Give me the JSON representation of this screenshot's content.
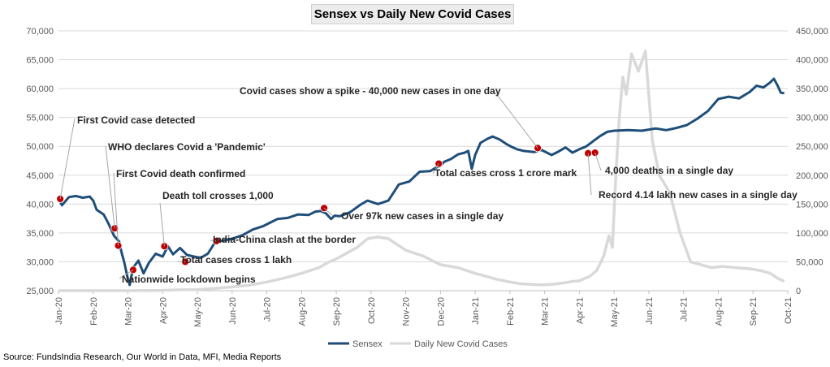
{
  "chart_data": {
    "type": "line",
    "title": "Sensex vs Daily New Covid Cases",
    "source": "Source: FundsIndia Research, Our World in Data, MFI, Media Reports",
    "x_tick_labels": [
      "Jan-20",
      "Feb-20",
      "Mar-20",
      "Apr-20",
      "May-20",
      "Jun-20",
      "Jul-20",
      "Aug-20",
      "Sep-20",
      "Oct-20",
      "Nov-20",
      "Dec-20",
      "Jan-21",
      "Feb-21",
      "Mar-21",
      "Apr-21",
      "May-21",
      "Jun-21",
      "Jul-21",
      "Aug-21",
      "Sep-21",
      "Oct-21"
    ],
    "x_range": [
      0,
      21
    ],
    "y_left": {
      "range": [
        25000,
        70000
      ],
      "ticks": [
        "25,000",
        "30,000",
        "35,000",
        "40,000",
        "45,000",
        "50,000",
        "55,000",
        "60,000",
        "65,000",
        "70,000"
      ]
    },
    "y_right": {
      "range": [
        0,
        450000
      ],
      "ticks": [
        "0",
        "50,000",
        "100,000",
        "150,000",
        "200,000",
        "250,000",
        "300,000",
        "350,000",
        "400,000",
        "450,000"
      ]
    },
    "legend": {
      "position": "bottom",
      "items": [
        "Sensex",
        "Daily New Covid Cases"
      ]
    },
    "colors": {
      "sensex": "#1f4e79",
      "covid": "#d9d9d9",
      "marker": "#c00000",
      "grid": "#d9d9d9"
    },
    "series": [
      {
        "name": "Sensex",
        "axis": "left",
        "x": [
          0,
          0.1,
          0.3,
          0.5,
          0.7,
          0.9,
          1.0,
          1.1,
          1.3,
          1.45,
          1.6,
          1.75,
          1.8,
          1.9,
          2.0,
          2.05,
          2.15,
          2.3,
          2.45,
          2.6,
          2.8,
          3.0,
          3.15,
          3.3,
          3.5,
          3.7,
          3.9,
          4.1,
          4.3,
          4.5,
          4.75,
          5.0,
          5.3,
          5.6,
          5.9,
          6.1,
          6.3,
          6.6,
          6.9,
          7.2,
          7.4,
          7.55,
          7.7,
          7.85,
          7.95,
          8.1,
          8.4,
          8.7,
          8.9,
          9.2,
          9.5,
          9.8,
          10.1,
          10.4,
          10.7,
          10.9,
          11.0,
          11.1,
          11.3,
          11.5,
          11.7,
          11.8,
          11.9,
          12.0,
          12.15,
          12.35,
          12.5,
          12.7,
          12.9,
          13.05,
          13.2,
          13.4,
          13.7,
          13.9,
          14.2,
          14.4,
          14.6,
          14.8,
          15.0,
          15.2,
          15.4,
          15.6,
          15.8,
          16.0,
          16.4,
          16.8,
          17.2,
          17.5,
          17.8,
          18.1,
          18.4,
          18.7,
          19.0,
          19.3,
          19.6,
          19.9,
          20.1,
          20.3,
          20.5,
          20.6,
          20.7,
          20.8,
          20.9
        ],
        "values": [
          41000,
          39800,
          41200,
          41400,
          41100,
          41300,
          40600,
          39000,
          38200,
          36500,
          34500,
          33500,
          32000,
          29800,
          27000,
          26000,
          29000,
          30200,
          28000,
          29800,
          31400,
          30900,
          32700,
          31300,
          32400,
          31200,
          30900,
          30700,
          31400,
          33300,
          33700,
          34000,
          34600,
          35600,
          36200,
          36800,
          37400,
          37600,
          38200,
          38100,
          38700,
          38800,
          38400,
          37400,
          38000,
          37900,
          38600,
          39900,
          40600,
          40000,
          40600,
          43400,
          43900,
          45600,
          45700,
          46400,
          46600,
          47300,
          47800,
          48600,
          48900,
          49200,
          46100,
          48500,
          50600,
          51300,
          51700,
          51200,
          50400,
          49900,
          49500,
          49200,
          49000,
          49400,
          48500,
          49100,
          49800,
          48900,
          49500,
          50000,
          50900,
          51800,
          52500,
          52700,
          52800,
          52700,
          53100,
          52800,
          53200,
          53700,
          54800,
          56100,
          58200,
          58600,
          58300,
          59400,
          60500,
          60200,
          61100,
          61700,
          60600,
          59300,
          59200
        ]
      },
      {
        "name": "Daily New Covid Cases",
        "axis": "right",
        "x": [
          0,
          1.0,
          1.6,
          2.0,
          2.3,
          2.5,
          2.8,
          3.0,
          3.2,
          3.5,
          4.0,
          4.5,
          5.0,
          5.5,
          6.0,
          6.5,
          7.0,
          7.5,
          7.8,
          8.0,
          8.3,
          8.6,
          8.9,
          9.2,
          9.5,
          10.0,
          10.5,
          11.0,
          11.5,
          12.0,
          12.3,
          12.6,
          13.0,
          13.3,
          13.6,
          13.9,
          14.2,
          14.5,
          14.8,
          15.0,
          15.3,
          15.5,
          15.7,
          15.85,
          15.95,
          16.05,
          16.15,
          16.25,
          16.35,
          16.5,
          16.7,
          16.9,
          17.1,
          17.3,
          17.6,
          17.9,
          18.2,
          18.5,
          18.8,
          19.1,
          19.5,
          19.9,
          20.2,
          20.5,
          20.7,
          20.9
        ],
        "values": [
          0,
          0,
          10,
          60,
          80,
          150,
          400,
          600,
          1000,
          1500,
          2000,
          3800,
          6500,
          9500,
          15000,
          22000,
          30000,
          40000,
          50000,
          55000,
          65000,
          75000,
          90000,
          93000,
          90000,
          70000,
          60000,
          45000,
          40000,
          30000,
          25000,
          20000,
          15000,
          12000,
          11000,
          10000,
          11000,
          13000,
          16000,
          17000,
          25000,
          35000,
          60000,
          95000,
          75000,
          200000,
          300000,
          370000,
          340000,
          410000,
          380000,
          415000,
          260000,
          200000,
          170000,
          100000,
          50000,
          45000,
          40000,
          42000,
          40000,
          38000,
          35000,
          30000,
          22000,
          16000
        ]
      }
    ],
    "annotations": [
      {
        "text": "First Covid case detected",
        "x": 0.05,
        "y": 40900
      },
      {
        "text": "WHO declares Covid a 'Pandemic'",
        "x": 1.62,
        "y": 35800
      },
      {
        "text": "First Covid death confirmed",
        "x": 1.72,
        "y": 32800
      },
      {
        "text": "Nationwide lockdown begins",
        "x": 2.15,
        "y": 28600
      },
      {
        "text": "Death toll crosses 1,000",
        "x": 3.05,
        "y": 32700
      },
      {
        "text": "Total cases cross 1 lakh",
        "x": 3.65,
        "y": 30000
      },
      {
        "text": "India-China clash at the border",
        "x": 4.55,
        "y": 33600
      },
      {
        "text": "Over 97k new cases in a single day",
        "x": 7.65,
        "y": 39300
      },
      {
        "text": "Total cases cross 1 crore mark",
        "x": 10.95,
        "y": 47000
      },
      {
        "text": "Covid cases show a spike - 40,000 new cases in one day",
        "x": 13.8,
        "y": 49700
      },
      {
        "text": "Record 4.14 lakh new cases in a single day",
        "x": 15.25,
        "y": 48800
      },
      {
        "text": "4,000 deaths in a single day",
        "x": 15.45,
        "y": 48900
      }
    ]
  }
}
